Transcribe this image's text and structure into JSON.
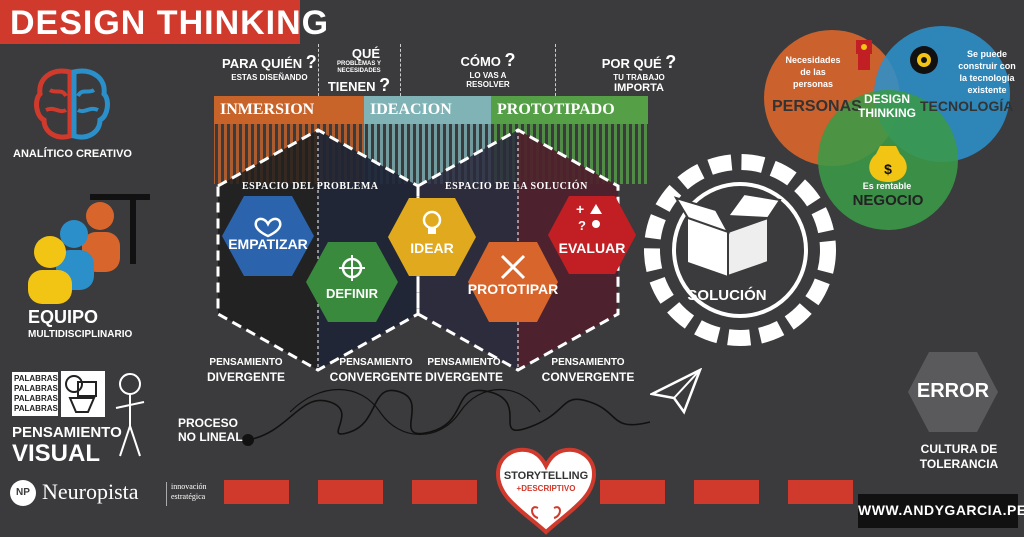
{
  "header": {
    "title": "DESIGN THINKING"
  },
  "brain": {
    "caption": "ANALÍTICO CREATIVO"
  },
  "team": {
    "title": "EQUIPO",
    "subtitle": "MULTIDISCIPLINARIO"
  },
  "visual": {
    "words": [
      "PALABRAS",
      "PALABRAS",
      "PALABRAS",
      "PALABRAS"
    ],
    "line1": "PENSAMIENTO",
    "line2": "VISUAL"
  },
  "brand": {
    "name": "Neuropista",
    "tag1": "innovación",
    "tag2": "estratégica",
    "logo": "NP"
  },
  "questions": [
    {
      "big": "PARA QUIÉN",
      "small": "ESTAS DISEÑANDO"
    },
    {
      "big": "QUÉ",
      "small1": "PROBLEMAS Y",
      "small2": "NECESIDADES",
      "big2": "TIENEN"
    },
    {
      "big": "CÓMO",
      "small1": "LO VAS A",
      "small2": "RESOLVER"
    },
    {
      "big": "POR QUÉ",
      "small1": "TU TRABAJO",
      "big2": "IMPORTA"
    }
  ],
  "phases": [
    {
      "label": "INMERSION",
      "color": "#c8642a"
    },
    {
      "label": "IDEACION",
      "color": "#7fb3b6"
    },
    {
      "label": "PROTOTIPADO",
      "color": "#55a047"
    }
  ],
  "spaces": {
    "problem": "ESPACIO DEL PROBLEMA",
    "solution": "ESPACIO DE LA SOLUCIÓN"
  },
  "steps": [
    {
      "label": "EMPATIZAR",
      "color": "#2b64ad"
    },
    {
      "label": "DEFINIR",
      "color": "#3a8a3e"
    },
    {
      "label": "IDEAR",
      "color": "#e0a91e"
    },
    {
      "label": "PROTOTIPAR",
      "color": "#d8652b"
    },
    {
      "label": "EVALUAR",
      "color": "#c21f24"
    }
  ],
  "thinking": [
    {
      "l1": "PENSAMIENTO",
      "l2": "DIVERGENTE"
    },
    {
      "l1": "PENSAMIENTO",
      "l2": "CONVERGENTE"
    },
    {
      "l1": "PENSAMIENTO",
      "l2": "DIVERGENTE"
    },
    {
      "l1": "PENSAMIENTO",
      "l2": "CONVERGENTE"
    }
  ],
  "solution": {
    "label": "SOLUCIÓN"
  },
  "process": {
    "l1": "PROCESO",
    "l2": "NO LINEAL"
  },
  "storytelling": {
    "title": "STORYTELLING",
    "sub": "+DESCRIPTIVO"
  },
  "venn": {
    "people_text": [
      "Necesidades",
      "de las",
      "personas"
    ],
    "people_label": "PERSONAS",
    "tech_text": [
      "Se puede",
      "construir con",
      "la tecnología",
      "existente"
    ],
    "tech_label": "TECNOLOGÍA",
    "center": [
      "DESIGN",
      "THINKING"
    ],
    "business_text": "Es rentable",
    "business_label": "NEGOCIO",
    "colors": {
      "people": "#d8652b",
      "tech": "#2b8fc9",
      "business": "#3a9a48"
    }
  },
  "error": {
    "label": "ERROR",
    "caption1": "CULTURA DE",
    "caption2": "TOLERANCIA"
  },
  "website": "WWW.ANDYGARCIA.PE"
}
